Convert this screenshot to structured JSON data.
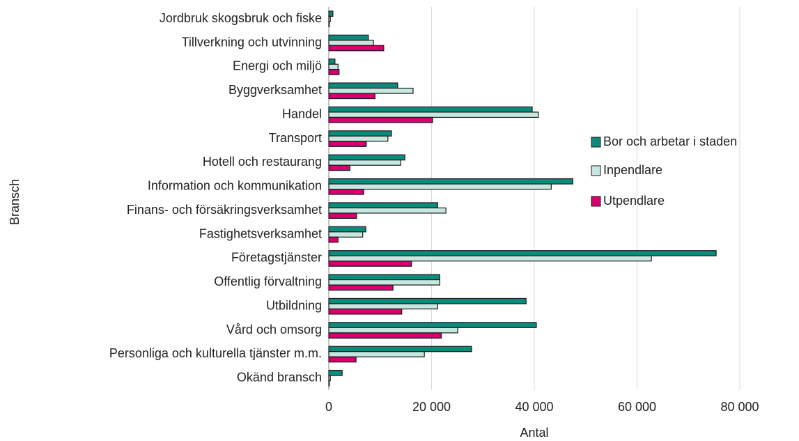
{
  "chart_data": {
    "type": "bar",
    "orientation": "horizontal",
    "xlabel": "Antal",
    "ylabel": "Bransch",
    "categories": [
      "Jordbruk skogsbruk och fiske",
      "Tillverkning och utvinning",
      "Energi och miljö",
      "Byggverksamhet",
      "Handel",
      "Transport",
      "Hotell och restaurang",
      "Information och kommunikation",
      "Finans- och försäkringsverksamhet",
      "Fastighetsverksamhet",
      "Företagstjänster",
      "Offentlig förvaltning",
      "Utbildning",
      "Vård och omsorg",
      "Personliga och kulturella tjänster m.m.",
      "Okänd bransch"
    ],
    "series": [
      {
        "name": "Bor och arbetar i staden",
        "color": "#0e8a7d",
        "values": [
          800,
          7700,
          1200,
          13400,
          39600,
          12200,
          14800,
          47500,
          21200,
          7200,
          75400,
          21600,
          38400,
          40400,
          27800,
          2600
        ]
      },
      {
        "name": "Inpendlare",
        "color": "#c6e8e0",
        "values": [
          300,
          8700,
          1800,
          16400,
          40800,
          11500,
          14000,
          43300,
          22800,
          6600,
          62800,
          21600,
          21200,
          25100,
          18600,
          300
        ]
      },
      {
        "name": "Utpendlare",
        "color": "#d6006f",
        "values": [
          100,
          10700,
          2000,
          9000,
          20200,
          7300,
          4100,
          6800,
          5400,
          1800,
          16100,
          12500,
          14200,
          21900,
          5300,
          100
        ]
      }
    ],
    "xlim": [
      0,
      80000
    ],
    "xticks": [
      0,
      {
        "value": 20000,
        "label": "20 000"
      },
      {
        "value": 40000,
        "label": "40 000"
      },
      {
        "value": 60000,
        "label": "60 000"
      },
      {
        "value": 80000,
        "label": "80 000"
      }
    ],
    "grid": true,
    "legend": "right"
  }
}
